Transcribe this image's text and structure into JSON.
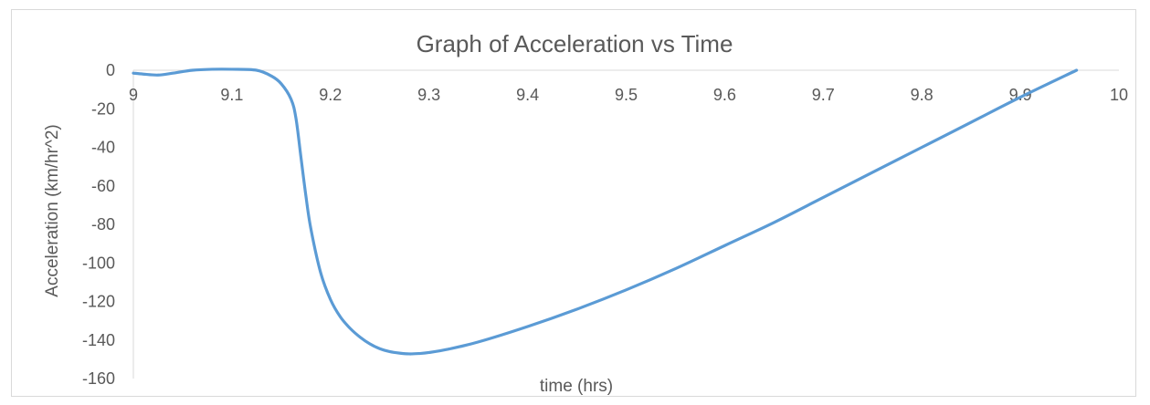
{
  "chart_data": {
    "type": "line",
    "title": "Graph of Acceleration vs Time",
    "xlabel": "time (hrs)",
    "ylabel": "Acceleration (km/hr^2)",
    "xlim": [
      9,
      10
    ],
    "ylim": [
      -160,
      0
    ],
    "x_ticks": [
      "9",
      "9.1",
      "9.2",
      "9.3",
      "9.4",
      "9.5",
      "9.6",
      "9.7",
      "9.8",
      "9.9",
      "10"
    ],
    "y_ticks": [
      "0",
      "-20",
      "-40",
      "-60",
      "-80",
      "-100",
      "-120",
      "-140",
      "-160"
    ],
    "grid": false,
    "legend": "none",
    "line_color": "#5b9bd5",
    "series": [
      {
        "x": [
          9.0,
          9.01,
          9.025,
          9.04,
          9.06,
          9.08,
          9.1,
          9.125,
          9.14,
          9.15,
          9.16,
          9.165,
          9.17,
          9.175,
          9.18,
          9.19,
          9.2,
          9.21,
          9.22,
          9.23,
          9.24,
          9.25,
          9.26,
          9.27,
          9.28,
          9.29,
          9.3,
          9.32,
          9.35,
          9.4,
          9.45,
          9.5,
          9.55,
          9.6,
          9.65,
          9.7,
          9.75,
          9.8,
          9.85,
          9.9,
          9.957
        ],
        "y": [
          -1.5,
          -2,
          -2.5,
          -1.5,
          0,
          0.5,
          0.5,
          0,
          -3,
          -7,
          -15,
          -25,
          -45,
          -65,
          -82,
          -105,
          -119,
          -128,
          -134,
          -138.5,
          -142,
          -144.5,
          -146,
          -146.8,
          -147.2,
          -147,
          -146.5,
          -144.7,
          -141,
          -133,
          -124,
          -114,
          -103,
          -91,
          -79,
          -66,
          -53,
          -40,
          -27,
          -14,
          0
        ]
      }
    ]
  }
}
